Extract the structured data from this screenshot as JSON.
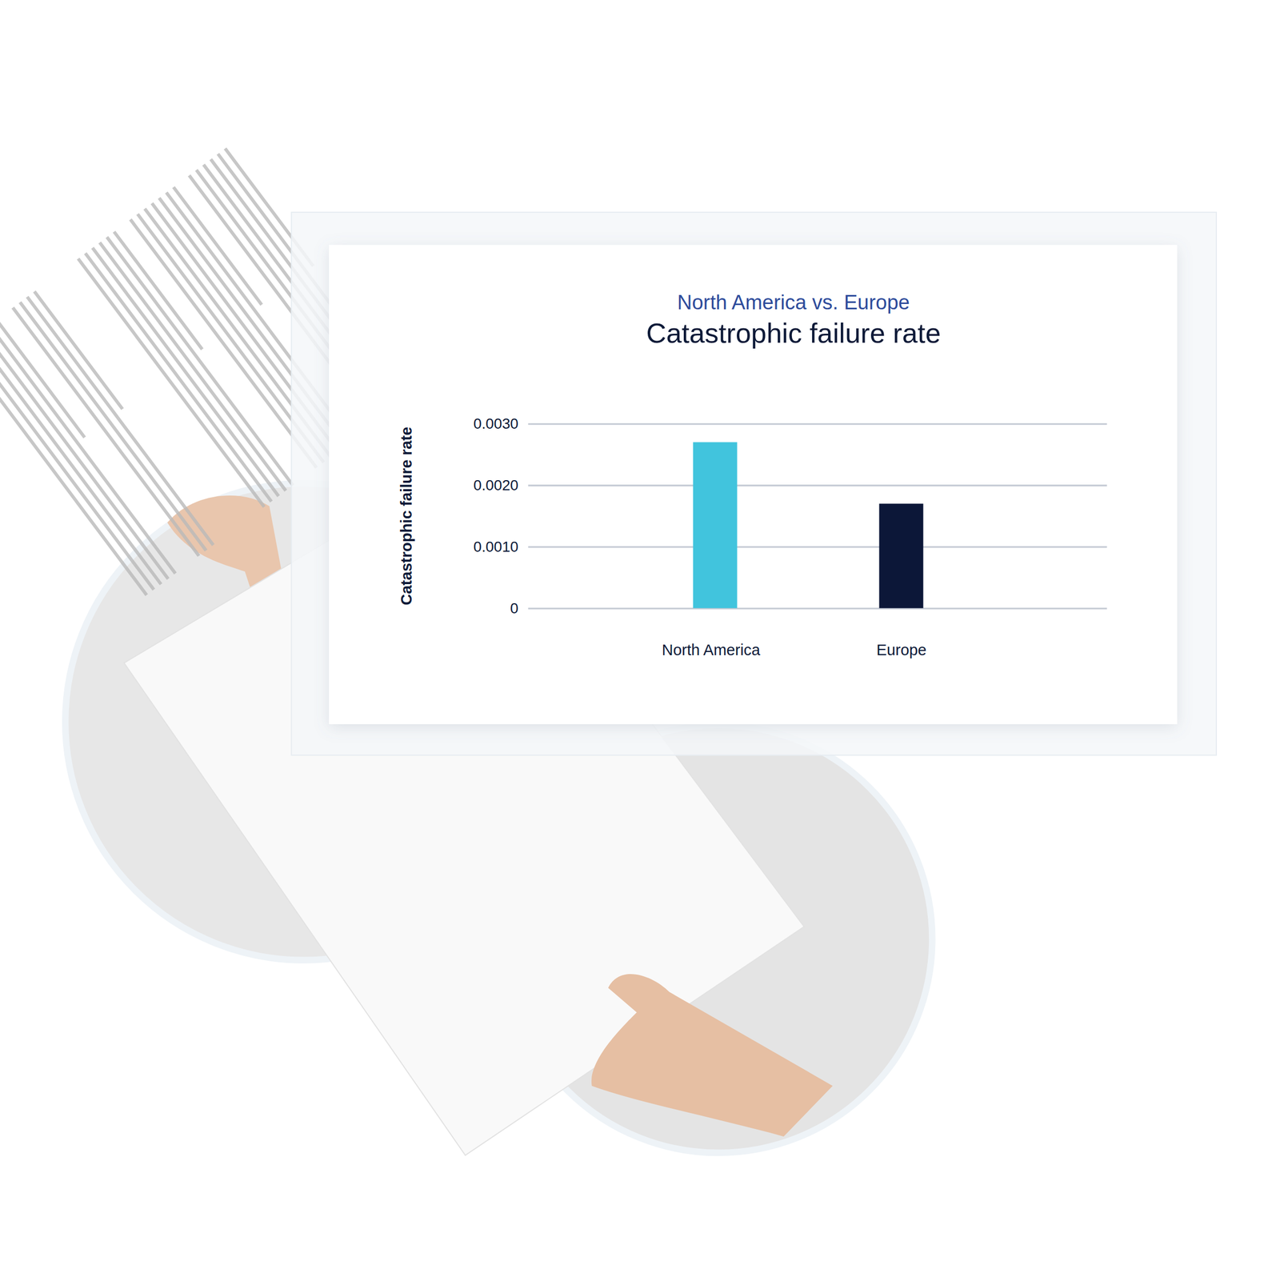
{
  "chart_data": {
    "type": "bar",
    "subtitle": "North America vs. Europe",
    "title": "Catastrophic failure rate",
    "y_label": "Catastrophic failure rate",
    "categories": [
      "North America",
      "Europe"
    ],
    "values": [
      0.0027,
      0.0017
    ],
    "colors": [
      "#41c4dd",
      "#0c1738"
    ],
    "ylim": [
      0,
      0.003
    ],
    "yticks": [
      0,
      {
        "value": 0.001,
        "label": "0.0010"
      },
      {
        "value": 0.002,
        "label": "0.0020"
      },
      {
        "value": 0.003,
        "label": "0.0030"
      }
    ],
    "grid": true
  }
}
